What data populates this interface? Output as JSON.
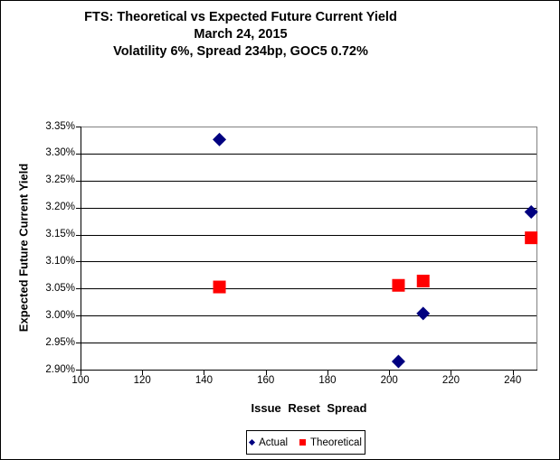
{
  "chart_data": {
    "type": "scatter",
    "title_lines": [
      "FTS: Theoretical vs Expected Future Current Yield",
      "March 24, 2015",
      "Volatility 6%, Spread 234bp, GOC5 0.72%"
    ],
    "xlabel": "Issue Reset Spread",
    "ylabel": "Expected Future Current Yield",
    "xlim": [
      100,
      248
    ],
    "ylim": [
      2.9,
      3.35
    ],
    "grid": "horizontal",
    "legend_position": "bottom",
    "x_ticks": [
      {
        "v": 100,
        "label": "100"
      },
      {
        "v": 120,
        "label": "120"
      },
      {
        "v": 140,
        "label": "140"
      },
      {
        "v": 160,
        "label": "160"
      },
      {
        "v": 180,
        "label": "180"
      },
      {
        "v": 200,
        "label": "200"
      },
      {
        "v": 220,
        "label": "220"
      },
      {
        "v": 240,
        "label": "240"
      }
    ],
    "y_ticks": [
      {
        "v": 2.9,
        "label": "2.90%"
      },
      {
        "v": 2.95,
        "label": "2.95%"
      },
      {
        "v": 3.0,
        "label": "3.00%"
      },
      {
        "v": 3.05,
        "label": "3.05%"
      },
      {
        "v": 3.1,
        "label": "3.10%"
      },
      {
        "v": 3.15,
        "label": "3.15%"
      },
      {
        "v": 3.2,
        "label": "3.20%"
      },
      {
        "v": 3.25,
        "label": "3.25%"
      },
      {
        "v": 3.3,
        "label": "3.30%"
      },
      {
        "v": 3.35,
        "label": "3.35%"
      }
    ],
    "series": [
      {
        "name": "Actual",
        "marker": "diamond",
        "color": "#000080",
        "points": [
          [
            145,
            3.326
          ],
          [
            203,
            2.915
          ],
          [
            211,
            3.004
          ],
          [
            246,
            3.192
          ]
        ]
      },
      {
        "name": "Theoretical",
        "marker": "square",
        "color": "#FF0000",
        "points": [
          [
            145,
            3.053
          ],
          [
            203,
            3.056
          ],
          [
            211,
            3.064
          ],
          [
            246,
            3.144
          ]
        ]
      }
    ]
  },
  "colors": {
    "gridline": "#000000",
    "axis": "#000000",
    "plot_border": "#808080",
    "background": "#FFFFFF",
    "actual": "#000080",
    "theoretical": "#FF0000"
  }
}
